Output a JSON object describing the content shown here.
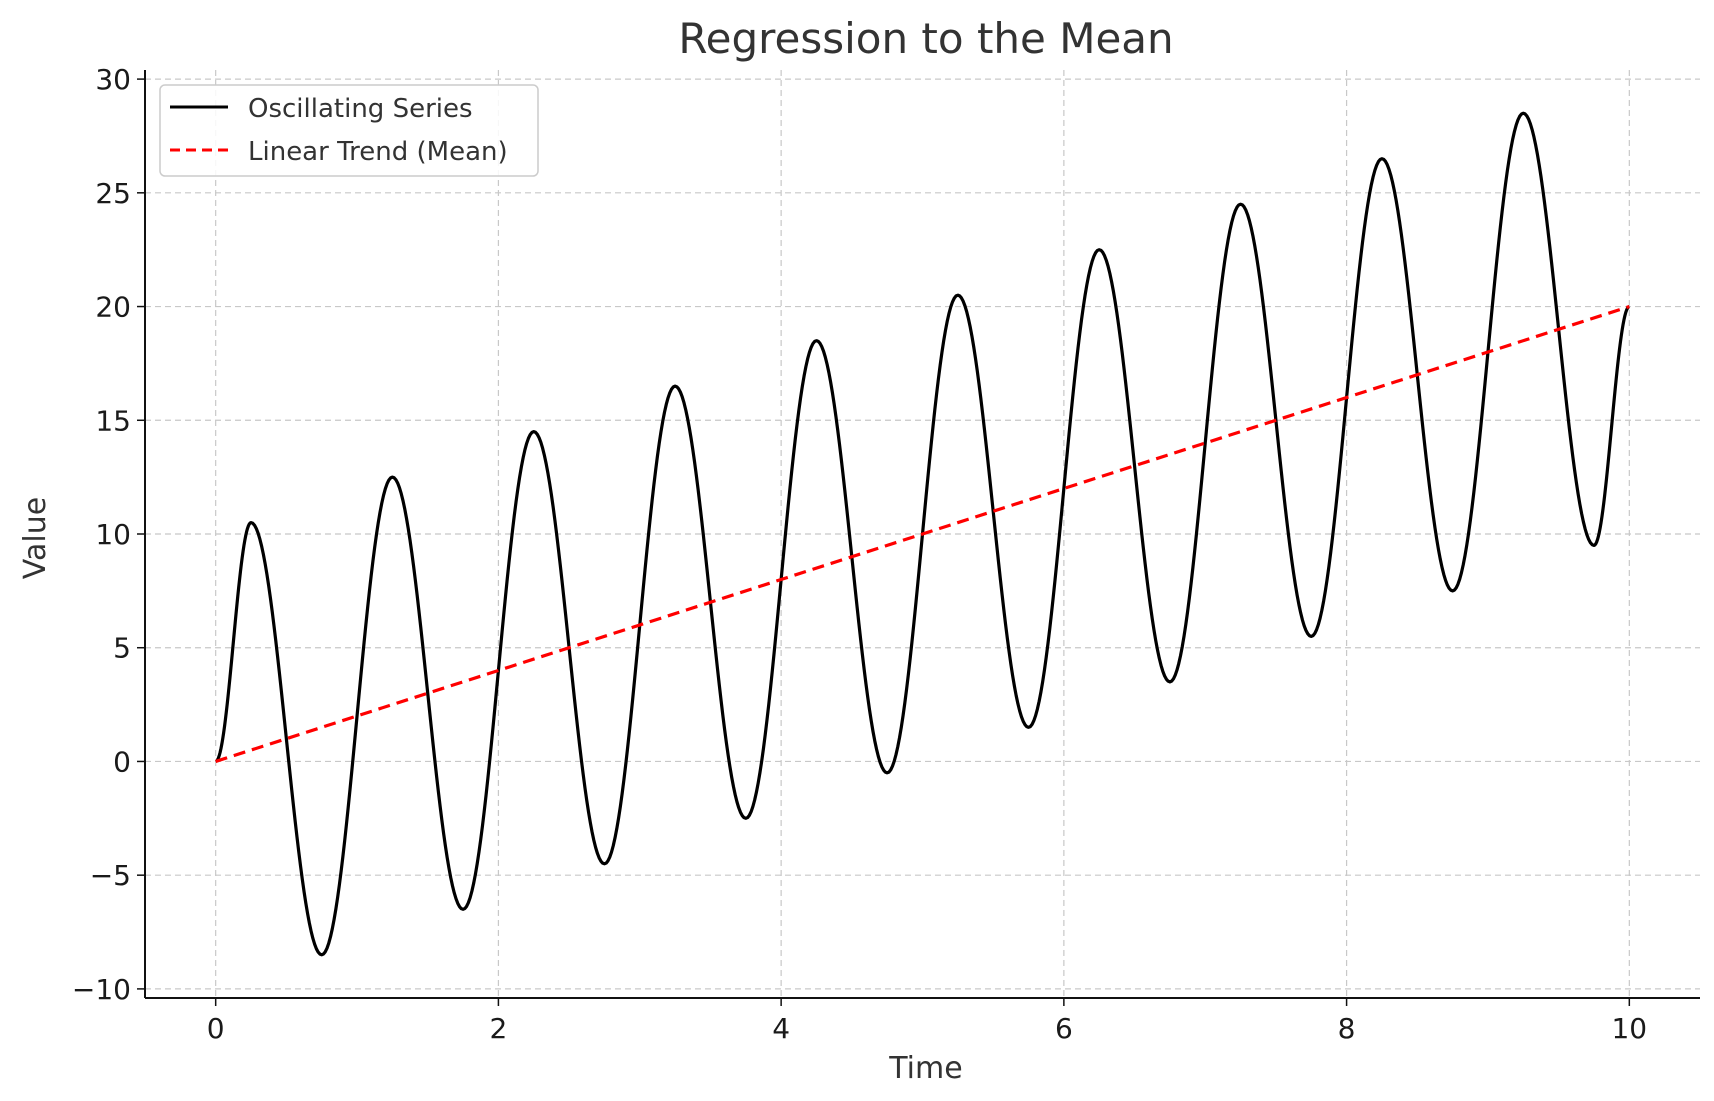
{
  "chart_data": {
    "type": "line",
    "title": "Regression to the Mean",
    "xlabel": "Time",
    "ylabel": "Value",
    "xlim": [
      -0.5,
      10.5
    ],
    "ylim": [
      -10.4,
      30.4
    ],
    "xticks": [
      0,
      2,
      4,
      6,
      8,
      10
    ],
    "xtick_labels": [
      "0",
      "2",
      "4",
      "6",
      "8",
      "10"
    ],
    "yticks": [
      -10,
      -5,
      0,
      5,
      10,
      15,
      20,
      25,
      30
    ],
    "ytick_labels": [
      "−10",
      "−5",
      "0",
      "5",
      "10",
      "15",
      "20",
      "25",
      "30"
    ],
    "grid": true,
    "legend": "top-left",
    "series": [
      {
        "name": "Oscillating Series",
        "color": "#000000",
        "style": "solid",
        "x": [
          0,
          0.25,
          0.75,
          1.25,
          1.75,
          2.25,
          2.75,
          3.25,
          3.75,
          4.25,
          4.75,
          5.25,
          5.75,
          6.25,
          6.75,
          7.25,
          7.75,
          8.25,
          8.75,
          9.25,
          9.75,
          10
        ],
        "y": [
          0,
          10.5,
          -8.5,
          12.5,
          -6.5,
          14.5,
          -4.5,
          16.5,
          -2.5,
          18.5,
          -0.5,
          20.5,
          1.5,
          22.5,
          3.5,
          24.5,
          5.5,
          26.5,
          7.5,
          28.5,
          9.5,
          20
        ]
      },
      {
        "name": "Linear Trend (Mean)",
        "color": "#ff0000",
        "style": "dashed",
        "x": [
          0,
          10
        ],
        "y": [
          0,
          20
        ]
      }
    ]
  }
}
